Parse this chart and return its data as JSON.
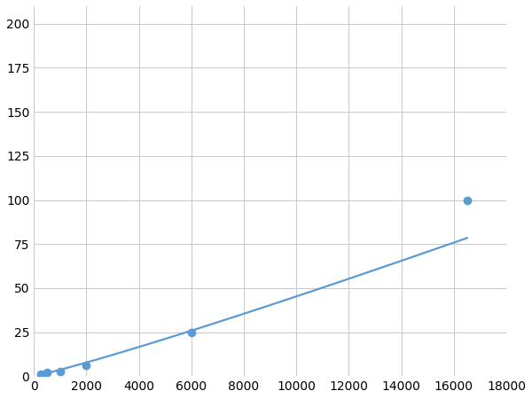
{
  "x": [
    250,
    500,
    1000,
    2000,
    6000,
    16500
  ],
  "y": [
    1,
    2,
    2.5,
    6,
    25,
    100
  ],
  "line_color": "#5b9bd5",
  "marker_color": "#5b9bd5",
  "marker_size": 6,
  "xlim": [
    0,
    18000
  ],
  "ylim": [
    0,
    210
  ],
  "xticks": [
    0,
    2000,
    4000,
    6000,
    8000,
    10000,
    12000,
    14000,
    16000,
    18000
  ],
  "yticks": [
    0,
    25,
    50,
    75,
    100,
    125,
    150,
    175,
    200
  ],
  "grid_color": "#c8c8c8",
  "background_color": "#ffffff",
  "tick_fontsize": 10,
  "linewidth": 1.6
}
